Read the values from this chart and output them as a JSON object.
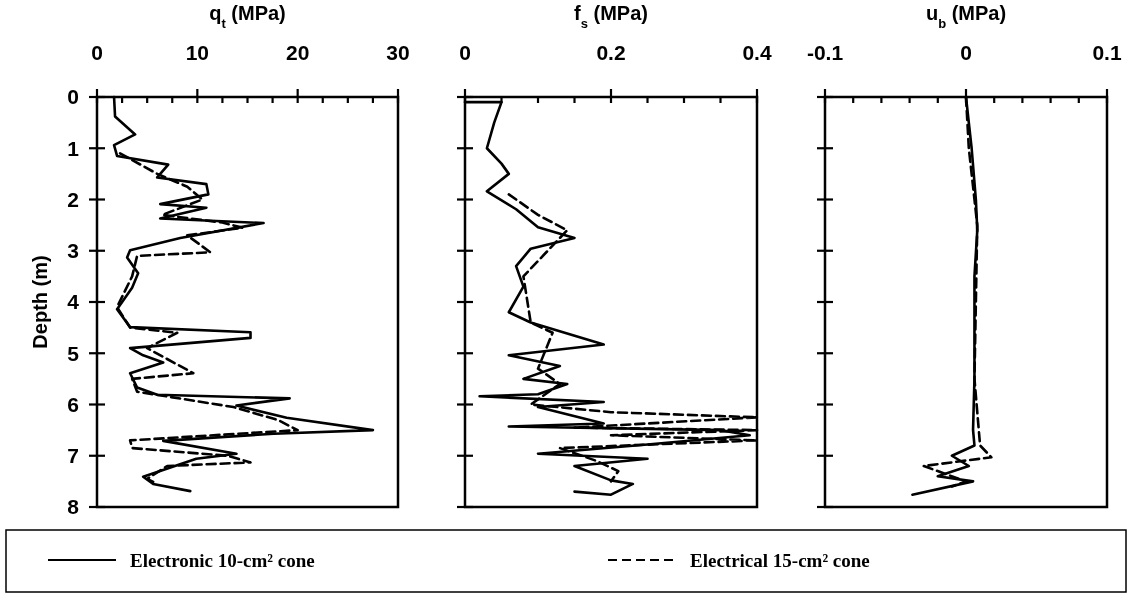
{
  "chart_data": [
    {
      "type": "line",
      "xlabel": "q$_{t}$ (MPa)",
      "ylabel": "Depth (m)",
      "xlim": [
        0,
        30
      ],
      "xticks": [
        0,
        {
          "value": 2.5,
          "label": null
        },
        {
          "value": 5,
          "label": null
        },
        {
          "value": 7.5,
          "label": null
        },
        10,
        {
          "value": 12.5,
          "label": null
        },
        {
          "value": 15,
          "label": null
        },
        {
          "value": 17.5,
          "label": null
        },
        20,
        {
          "value": 22.5,
          "label": null
        },
        {
          "value": 25,
          "label": null
        },
        {
          "value": 27.5,
          "label": null
        },
        30
      ],
      "ylim": [
        8,
        0
      ],
      "yticks": [
        0,
        1,
        2,
        3,
        4,
        5,
        6,
        7,
        8
      ],
      "legend": "bottom",
      "grid": false,
      "series": [
        {
          "name": "Electronic 10-cm² cone",
          "color": "#000000",
          "line_style": "solid",
          "x": [
            1.7,
            1.8,
            3.8,
            1.7,
            2.0,
            7.1,
            6.0,
            10.9,
            11.1,
            6.3,
            10.9,
            6.3,
            16.6,
            8.3,
            3.3,
            3.0,
            4.1,
            3.5,
            2.0,
            3.3,
            15.3,
            15.3,
            3.3,
            4.6,
            6.6,
            3.3,
            4.0,
            6.0,
            19.2,
            13.9,
            18.9,
            27.5,
            17.6,
            6.6,
            13.9,
            9.9,
            4.6,
            5.6,
            9.3
          ],
          "values": [
            0,
            0.38,
            0.73,
            0.94,
            1.15,
            1.32,
            1.57,
            1.7,
            1.9,
            2.09,
            2.16,
            2.37,
            2.46,
            2.75,
            2.99,
            3.13,
            3.44,
            3.72,
            4.14,
            4.49,
            4.59,
            4.7,
            4.9,
            5.04,
            5.18,
            5.39,
            5.67,
            5.81,
            5.88,
            6.02,
            6.26,
            6.5,
            6.57,
            6.71,
            6.96,
            7.06,
            7.41,
            7.55,
            7.69
          ]
        },
        {
          "name": "Electrical 15-cm² cone",
          "color": "#000000",
          "line_style": "dashed",
          "x": [
            2.3,
            6.0,
            9.0,
            10.5,
            6.5,
            12.5,
            14.5,
            9.0,
            11.3,
            4.0,
            3.5,
            2.0,
            3.3,
            8.0,
            5.0,
            9.6,
            3.5,
            4.0,
            13.6,
            18.0,
            20.0,
            3.3,
            3.5,
            13.0,
            15.3,
            7.0,
            5.0,
            6.0
          ],
          "values": [
            1.1,
            1.5,
            1.75,
            2.0,
            2.3,
            2.45,
            2.55,
            2.7,
            3.03,
            3.1,
            3.5,
            4.1,
            4.5,
            4.6,
            4.9,
            5.39,
            5.5,
            5.75,
            6.05,
            6.3,
            6.5,
            6.7,
            6.85,
            7.0,
            7.13,
            7.2,
            7.45,
            7.55
          ]
        }
      ]
    },
    {
      "type": "line",
      "xlabel": "f$_{s}$ (MPa)",
      "xlim": [
        0,
        0.4
      ],
      "xticks": [
        0,
        {
          "value": 0.05,
          "label": null
        },
        {
          "value": 0.1,
          "label": null
        },
        {
          "value": 0.15,
          "label": null
        },
        0.2,
        {
          "value": 0.25,
          "label": null
        },
        {
          "value": 0.3,
          "label": null
        },
        {
          "value": 0.35,
          "label": null
        },
        0.4
      ],
      "ylim": [
        8,
        0
      ],
      "yticks": [
        0,
        1,
        2,
        3,
        4,
        5,
        6,
        7,
        8
      ],
      "tick_labels": "x",
      "grid": false,
      "series": [
        {
          "color": "#000000",
          "line_style": "solid",
          "x": [
            0,
            0.05,
            0.04,
            0.03,
            0.05,
            0.06,
            0.03,
            0.07,
            0.1,
            0.15,
            0.09,
            0.07,
            0.08,
            0.06,
            0.09,
            0.19,
            0.06,
            0.13,
            0.08,
            0.14,
            0.1,
            0.02,
            0.19,
            0.1,
            0.19,
            0.06,
            0.35,
            0.39,
            0.25,
            0.1,
            0.25,
            0.15,
            0.2,
            0.23,
            0.2,
            0.15
          ],
          "values": [
            0.1,
            0.1,
            0.5,
            1.0,
            1.3,
            1.5,
            1.84,
            2.19,
            2.54,
            2.75,
            2.96,
            3.3,
            3.7,
            4.2,
            4.4,
            4.83,
            5.04,
            5.25,
            5.5,
            5.6,
            5.8,
            5.84,
            5.95,
            6.05,
            6.37,
            6.43,
            6.5,
            6.6,
            6.78,
            6.96,
            7.06,
            7.2,
            7.48,
            7.55,
            7.76,
            7.7
          ]
        },
        {
          "color": "#000000",
          "line_style": "dashed",
          "x": [
            0.06,
            0.1,
            0.14,
            0.12,
            0.08,
            0.09,
            0.12,
            0.1,
            0.13,
            0.09,
            0.2,
            0.4,
            0.15,
            0.4,
            0.2,
            0.4,
            0.13,
            0.18,
            0.21,
            0.2
          ],
          "values": [
            1.9,
            2.3,
            2.6,
            2.9,
            3.5,
            4.4,
            4.6,
            5.3,
            5.6,
            6.0,
            6.15,
            6.25,
            6.45,
            6.5,
            6.6,
            6.7,
            6.85,
            7.1,
            7.3,
            7.5
          ]
        }
      ]
    },
    {
      "type": "line",
      "xlabel": "u$_{b}$ (MPa)",
      "xlim": [
        -0.1,
        0.1
      ],
      "xticks": [
        -0.1,
        {
          "value": -0.08,
          "label": null
        },
        {
          "value": -0.06,
          "label": null
        },
        {
          "value": -0.04,
          "label": null
        },
        {
          "value": -0.02,
          "label": null
        },
        0,
        {
          "value": 0.02,
          "label": null
        },
        {
          "value": 0.04,
          "label": null
        },
        {
          "value": 0.06,
          "label": null
        },
        {
          "value": 0.08,
          "label": null
        },
        0.1
      ],
      "ylim": [
        8,
        0
      ],
      "yticks": [
        0,
        1,
        2,
        3,
        4,
        5,
        6,
        7,
        8
      ],
      "tick_labels": "x",
      "grid": false,
      "series": [
        {
          "color": "#000000",
          "line_style": "solid",
          "x": [
            0,
            0.002,
            0.004,
            0.007,
            0.008,
            0.006,
            0.006,
            0.006,
            0.005,
            0.006,
            -0.01,
            0.002,
            -0.02,
            0.005,
            -0.038
          ],
          "values": [
            0,
            0.5,
            1,
            2,
            2.6,
            3.5,
            4.5,
            5.5,
            6.5,
            6.8,
            7.0,
            7.2,
            7.4,
            7.5,
            7.76
          ]
        },
        {
          "color": "#000000",
          "line_style": "dashed",
          "x": [
            0,
            0.002,
            0.008,
            0.006,
            0.01,
            0.018,
            -0.03,
            0.0,
            -0.01
          ],
          "values": [
            0,
            1,
            2.5,
            5.5,
            6.8,
            7.03,
            7.2,
            7.5,
            7.6
          ]
        }
      ]
    }
  ]
}
